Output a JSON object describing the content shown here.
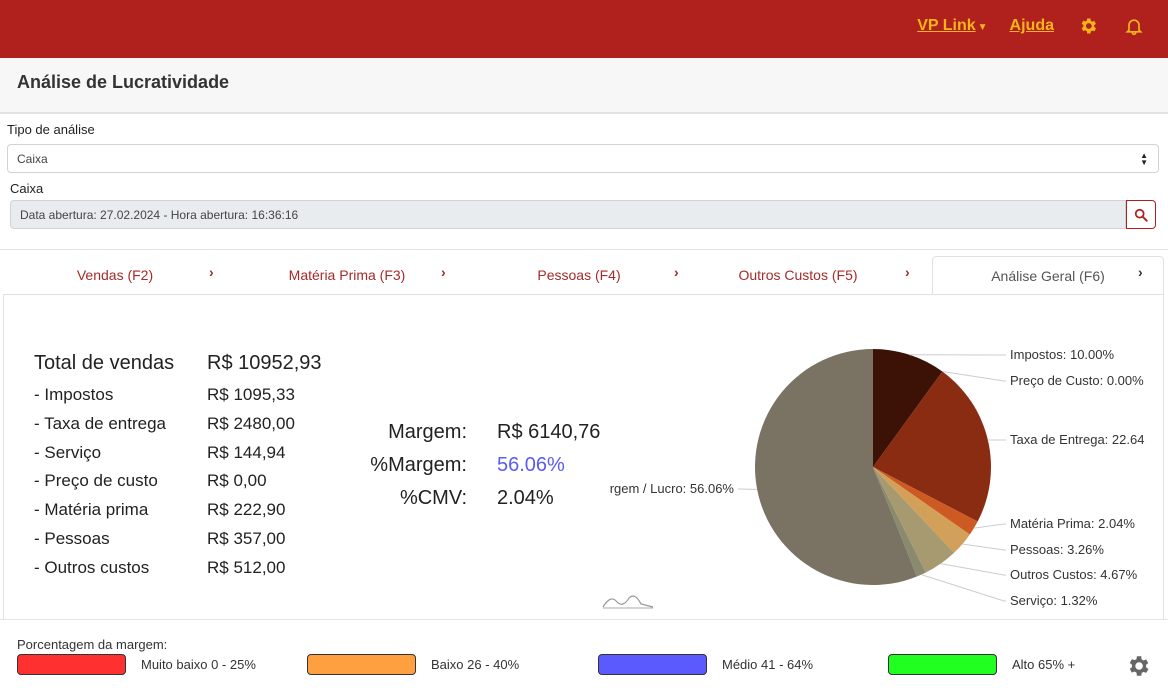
{
  "topbar": {
    "vp_link": "VP Link",
    "ajuda": "Ajuda",
    "bg_color": "#b0201c",
    "link_color": "#f7b51c",
    "icons": [
      "gear-icon",
      "bell-icon"
    ]
  },
  "header": {
    "title": "Análise de Lucratividade"
  },
  "form": {
    "tipo_label": "Tipo de análise",
    "tipo_value": "Caixa",
    "caixa_label": "Caixa",
    "caixa_value": "Data abertura: 27.02.2024 - Hora abertura: 16:36:16"
  },
  "tabs": [
    {
      "label": "Vendas (F2)"
    },
    {
      "label": "Matéria Prima (F3)"
    },
    {
      "label": "Pessoas (F4)"
    },
    {
      "label": "Outros Custos (F5)"
    },
    {
      "label": "Análise Geral (F6)",
      "active": true
    }
  ],
  "summary": {
    "total_label": "Total de vendas",
    "total_value": "R$ 10952,93",
    "items": [
      {
        "label": "- Impostos",
        "value": "R$ 1095,33"
      },
      {
        "label": "- Taxa de entrega",
        "value": "R$ 2480,00"
      },
      {
        "label": "- Serviço",
        "value": "R$ 144,94"
      },
      {
        "label": "- Preço de custo",
        "value": "R$ 0,00"
      },
      {
        "label": "- Matéria prima",
        "value": "R$ 222,90"
      },
      {
        "label": "- Pessoas",
        "value": "R$ 357,00"
      },
      {
        "label": "- Outros custos",
        "value": "R$ 512,00"
      }
    ]
  },
  "margins": {
    "margem_label": "Margem:",
    "margem_value": "R$ 6140,76",
    "pct_label": "%Margem:",
    "pct_value": "56.06%",
    "pct_color": "#5b5bef",
    "cmv_label": "%CMV:",
    "cmv_value": "2.04%"
  },
  "chart_data": {
    "type": "pie",
    "slices": [
      {
        "label": "Impostos: 10.00%",
        "value": 10.0,
        "color": "#3c1206"
      },
      {
        "label": "Preço de Custo: 0.00%",
        "value": 0.0,
        "color": "#5a1a0c"
      },
      {
        "label": "Taxa de Entrega: 22.64",
        "value": 22.64,
        "color": "#8a2c12"
      },
      {
        "label": "Matéria Prima: 2.04%",
        "value": 2.04,
        "color": "#cc5a22"
      },
      {
        "label": "Pessoas: 3.26%",
        "value": 3.26,
        "color": "#d2a058"
      },
      {
        "label": "Outros Custos: 4.67%",
        "value": 4.67,
        "color": "#a89a70"
      },
      {
        "label": "Serviço: 1.32%",
        "value": 1.32,
        "color": "#8a8a6e"
      },
      {
        "label": "rgem / Lucro: 56.06%",
        "value": 56.06,
        "color": "#7a7262"
      }
    ]
  },
  "legend": {
    "title": "Porcentagem da margem:",
    "items": [
      {
        "label": "Muito baixo 0 - 25%",
        "color": "#ff3030"
      },
      {
        "label": "Baixo 26 - 40%",
        "color": "#ffa040"
      },
      {
        "label": "Médio 41 - 64%",
        "color": "#5a5aff"
      },
      {
        "label": "Alto 65% +",
        "color": "#20ff20"
      }
    ]
  }
}
